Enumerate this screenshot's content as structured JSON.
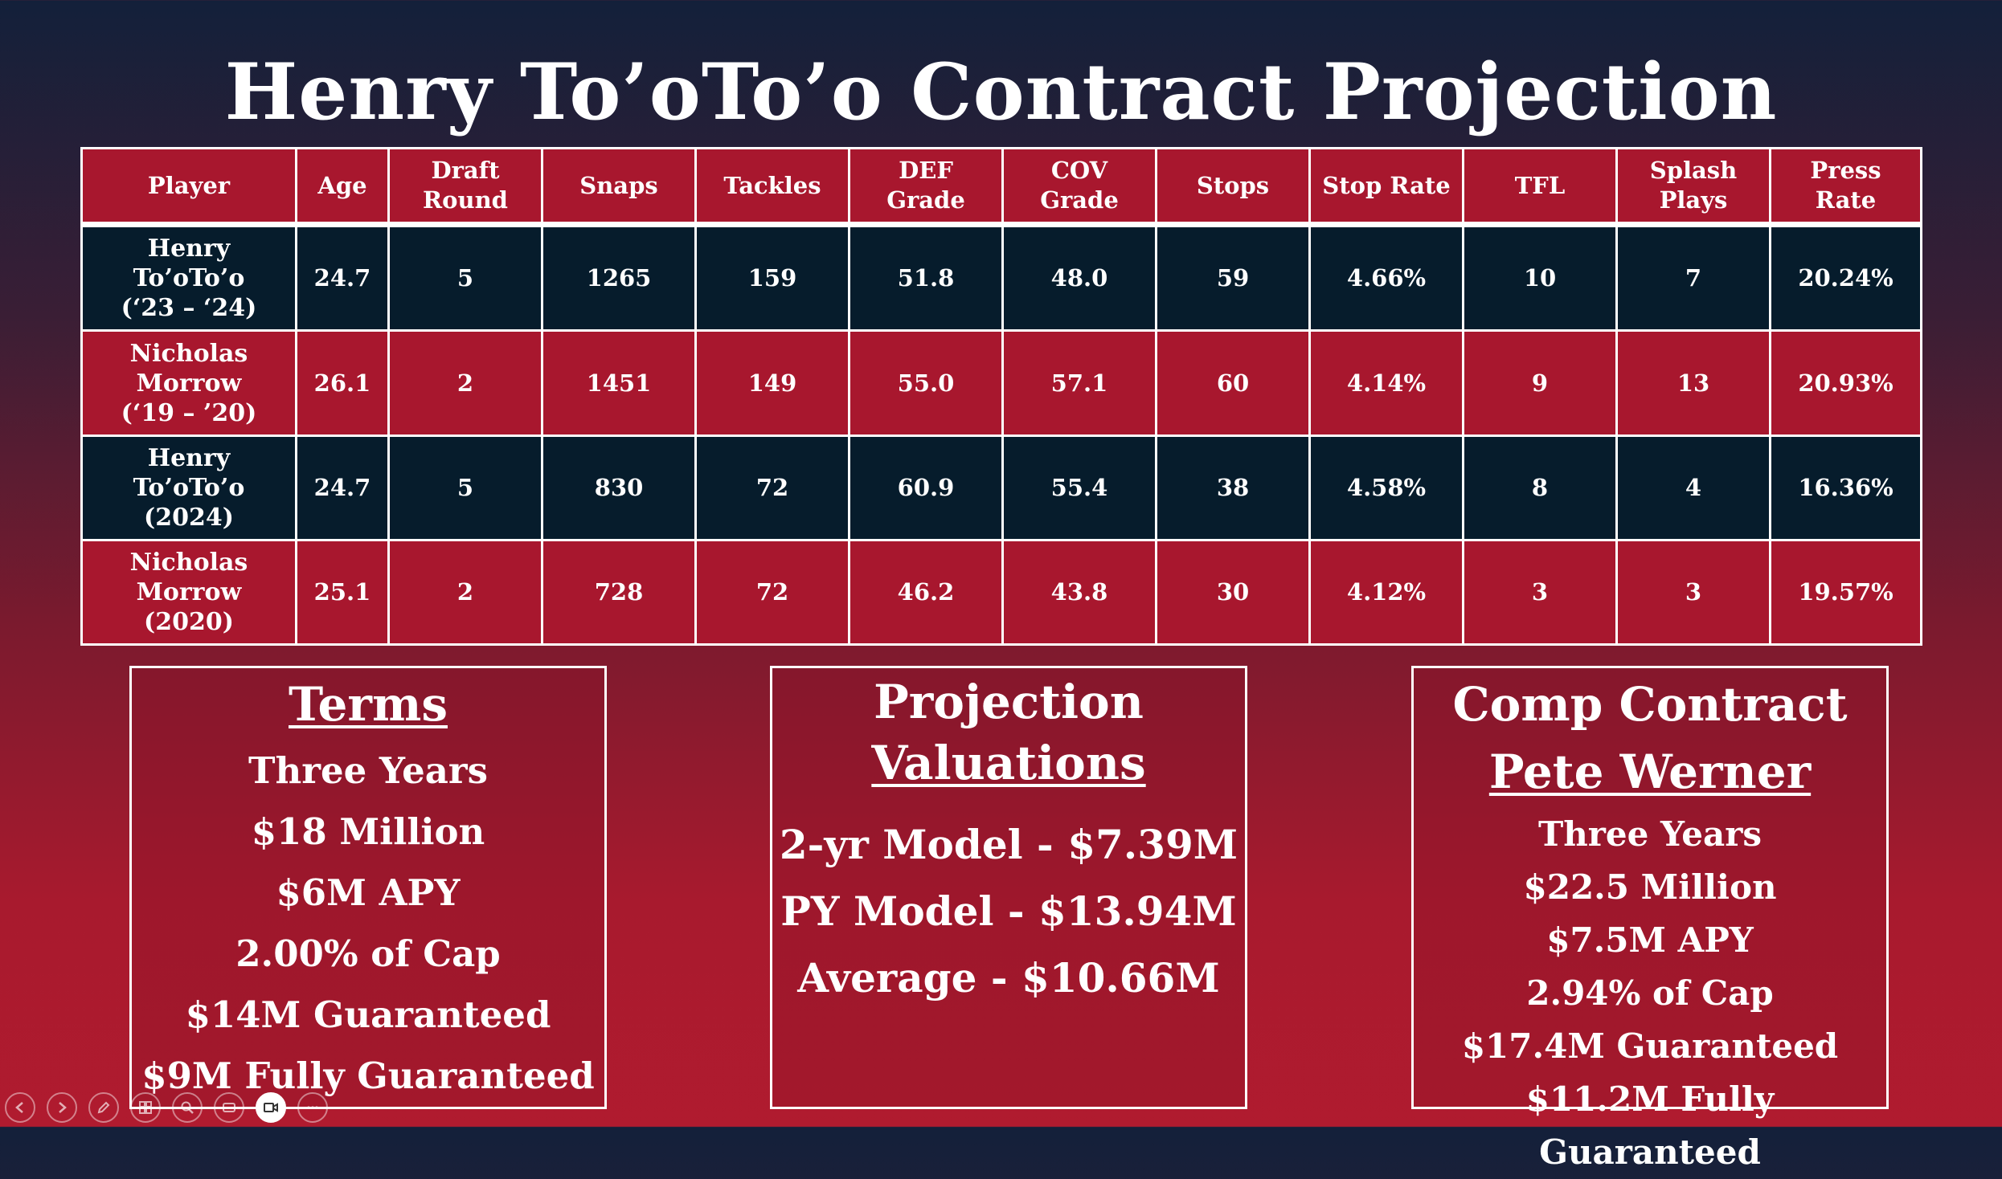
{
  "title": "Henry To’oTo’o Contract Projection",
  "table": {
    "headers": [
      "Player",
      "Age",
      "Draft Round",
      "Snaps",
      "Tackles",
      "DEF Grade",
      "COV Grade",
      "Stops",
      "Stop Rate",
      "TFL",
      "Splash Plays",
      "Press Rate"
    ],
    "rows": [
      {
        "player": [
          "Henry",
          "To’oTo’o",
          "(‘23 – ‘24)"
        ],
        "cells": [
          "24.7",
          "5",
          "1265",
          "159",
          "51.8",
          "48.0",
          "59",
          "4.66%",
          "10",
          "7",
          "20.24%"
        ]
      },
      {
        "player": [
          "Nicholas",
          "Morrow",
          "(‘19 – ’20)"
        ],
        "cells": [
          "26.1",
          "2",
          "1451",
          "149",
          "55.0",
          "57.1",
          "60",
          "4.14%",
          "9",
          "13",
          "20.93%"
        ]
      },
      {
        "player": [
          "Henry",
          "To’oTo’o",
          "(2024)"
        ],
        "cells": [
          "24.7",
          "5",
          "830",
          "72",
          "60.9",
          "55.4",
          "38",
          "4.58%",
          "8",
          "4",
          "16.36%"
        ]
      },
      {
        "player": [
          "Nicholas",
          "Morrow",
          "(2020)"
        ],
        "cells": [
          "25.1",
          "2",
          "728",
          "72",
          "46.2",
          "43.8",
          "30",
          "4.12%",
          "3",
          "3",
          "19.57%"
        ]
      }
    ]
  },
  "terms": {
    "heading": "Terms",
    "lines": [
      "Three Years",
      "$18 Million",
      "$6M APY",
      "2.00% of Cap",
      "$14M Guaranteed",
      "$9M Fully Guaranteed"
    ]
  },
  "projection": {
    "heading_line1": "Projection",
    "heading_line2": "Valuations",
    "lines": [
      "2-yr Model - $7.39M",
      "PY Model - $13.94M",
      "Average - $10.66M"
    ]
  },
  "comp": {
    "heading": "Comp Contract",
    "player": "Pete Werner",
    "lines": [
      "Three Years",
      "$22.5 Million",
      "$7.5M APY",
      "2.94% of Cap",
      "$17.4M Guaranteed",
      "$11.2M Fully Guaranteed"
    ]
  },
  "toolbar": {
    "icons": [
      "previous-slide-icon",
      "next-slide-icon",
      "pen-icon",
      "slides-grid-icon",
      "zoom-icon",
      "subtitles-icon",
      "camera-icon",
      "more-options-icon"
    ]
  }
}
